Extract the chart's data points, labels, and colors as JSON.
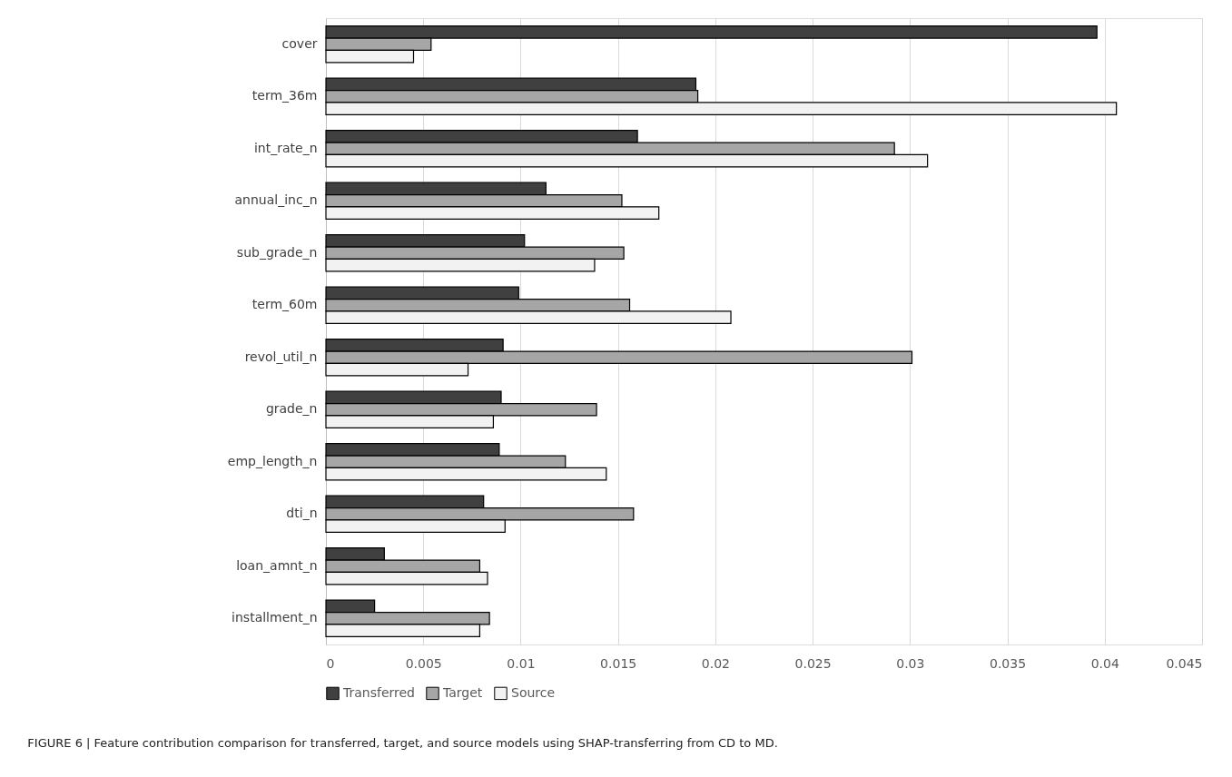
{
  "chart_data": {
    "type": "bar",
    "orientation": "horizontal",
    "categories": [
      "cover",
      "term_36m",
      "int_rate_n",
      "annual_inc_n",
      "sub_grade_n",
      "term_60m",
      "revol_util_n",
      "grade_n",
      "emp_length_n",
      "dti_n",
      "loan_amnt_n",
      "installment_n"
    ],
    "series": [
      {
        "name": "Transferred",
        "color": "#404040",
        "values": [
          0.0396,
          0.019,
          0.016,
          0.0113,
          0.0102,
          0.0099,
          0.0091,
          0.009,
          0.0089,
          0.0081,
          0.003,
          0.0025
        ]
      },
      {
        "name": "Target",
        "color": "#a6a6a6",
        "values": [
          0.0054,
          0.0191,
          0.0292,
          0.0152,
          0.0153,
          0.0156,
          0.0301,
          0.0139,
          0.0123,
          0.0158,
          0.0079,
          0.0084
        ]
      },
      {
        "name": "Source",
        "color": "#f2f2f2",
        "values": [
          0.0045,
          0.0406,
          0.0309,
          0.0171,
          0.0138,
          0.0208,
          0.0073,
          0.0086,
          0.0144,
          0.0092,
          0.0083,
          0.0079
        ]
      }
    ],
    "xlim": [
      0,
      0.045
    ],
    "xticks": [
      0,
      0.005,
      0.01,
      0.015,
      0.02,
      0.025,
      0.03,
      0.035,
      0.04,
      0.045
    ],
    "grid": "x",
    "legend": "bottom",
    "annotations": [
      "FIGURE 6 | Feature contribution comparison for transferred, target, and source models using SHAP-transferring from CD to MD."
    ]
  }
}
